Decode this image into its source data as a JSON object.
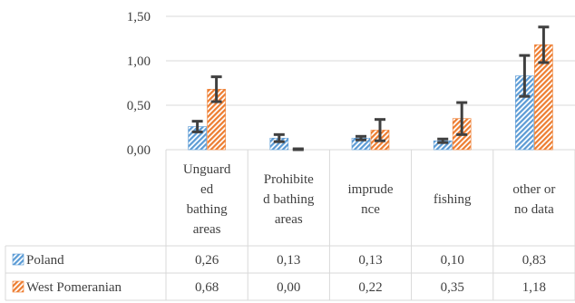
{
  "chart_data": {
    "type": "bar",
    "categories": [
      [
        "Unguard",
        "ed",
        "bathing",
        "areas"
      ],
      [
        "Prohibite",
        "d bathing",
        "areas"
      ],
      [
        "imprude",
        "nce"
      ],
      [
        "fishing"
      ],
      [
        "other or",
        "no data"
      ]
    ],
    "series": [
      {
        "name": "Poland",
        "color": "#5b9bd5",
        "pattern": "diagonal-hatch",
        "values": [
          0.26,
          0.13,
          0.13,
          0.1,
          0.83
        ],
        "labels": [
          "0,26",
          "0,13",
          "0,13",
          "0,10",
          "0,83"
        ],
        "error": [
          0.06,
          0.04,
          0.02,
          0.02,
          0.23
        ]
      },
      {
        "name": "West Pomeranian",
        "color": "#ed7d31",
        "pattern": "diagonal-hatch",
        "values": [
          0.68,
          0.0,
          0.22,
          0.35,
          1.18
        ],
        "labels": [
          "0,68",
          "0,00",
          "0,22",
          "0,35",
          "1,18"
        ],
        "error": [
          0.14,
          0.01,
          0.12,
          0.18,
          0.2
        ]
      }
    ],
    "yticks": [
      "0,00",
      "0,50",
      "1,00",
      "1,50"
    ],
    "ytick_values": [
      0,
      0.5,
      1.0,
      1.5
    ],
    "ylim": [
      0,
      1.5
    ],
    "grid": true,
    "error_bars": true,
    "legend": "data-table"
  }
}
